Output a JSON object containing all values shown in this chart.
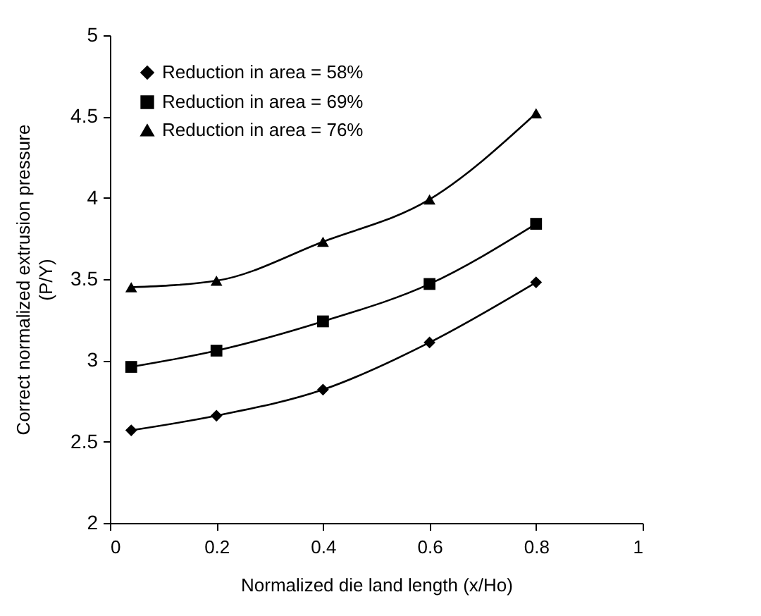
{
  "chart_data": {
    "type": "line",
    "xlabel": "Normalized die land length (x/Ho)",
    "ylabel": "Correct normalized extrusion pressure\n(P/Y)",
    "x": [
      0.04,
      0.2,
      0.4,
      0.6,
      0.8
    ],
    "series": [
      {
        "name": "Reduction in area = 58%",
        "color": "#000000",
        "marker": "diamond",
        "values": [
          2.57,
          2.66,
          2.82,
          3.11,
          3.48
        ]
      },
      {
        "name": "Reduction in area = 69%",
        "color": "#000000",
        "marker": "square",
        "values": [
          2.96,
          3.06,
          3.24,
          3.47,
          3.84
        ]
      },
      {
        "name": "Reduction in area = 76%",
        "color": "#000000",
        "marker": "triangle",
        "values": [
          3.45,
          3.49,
          3.73,
          3.99,
          4.52
        ]
      }
    ],
    "xlim": [
      0,
      1
    ],
    "xticks": [
      0,
      0.2,
      0.4,
      0.6,
      0.8,
      1
    ],
    "ylim": [
      2,
      5
    ],
    "yticks": [
      2,
      2.5,
      3,
      3.5,
      4,
      4.5,
      5
    ],
    "grid": false,
    "legend": "top left",
    "line_style": "solid"
  }
}
